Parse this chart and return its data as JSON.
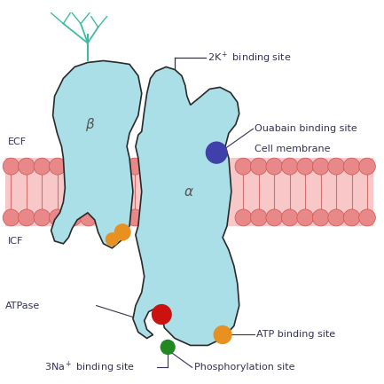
{
  "bg_color": "#ffffff",
  "alpha_color": "#aadfe8",
  "beta_color": "#aadfe8",
  "label_color": "#333355",
  "line_color": "#2a2a2a",
  "membrane_fill": "#f8c8c8",
  "membrane_circle": "#e88888",
  "membrane_tail": "#d07070",
  "purple_spot": "#4040aa",
  "red_spot": "#cc1111",
  "orange_spot": "#e89020",
  "green_spot": "#228822",
  "teal_branch": "#40bba0",
  "ecf_label": "ECF",
  "icf_label": "ICF",
  "alpha_label": "α",
  "beta_label": "β"
}
